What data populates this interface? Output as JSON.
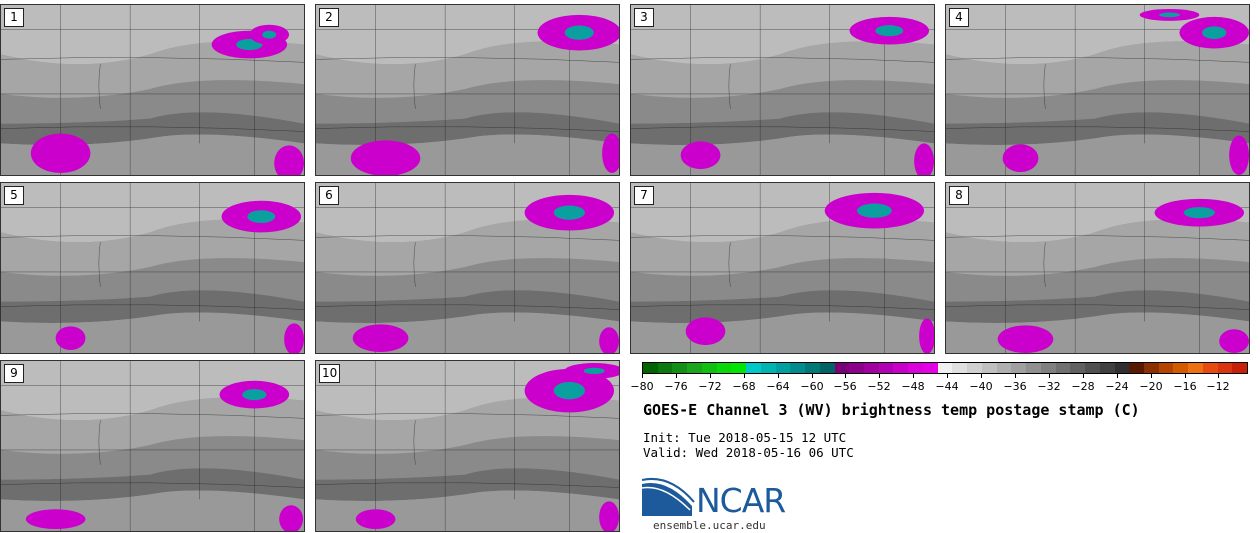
{
  "chart_data": {
    "type": "heatmap",
    "title": "GOES-E Channel 3 (WV) brightness temp postage stamp (C)",
    "init": "Init: Tue 2018-05-15 12 UTC",
    "valid": "Valid: Wed 2018-05-16 06 UTC",
    "panels": [
      "1",
      "2",
      "3",
      "4",
      "5",
      "6",
      "7",
      "8",
      "9",
      "10"
    ],
    "colorbar": {
      "range": [
        -80,
        -10
      ],
      "ticks": [
        "−80",
        "−76",
        "−72",
        "−68",
        "−64",
        "−60",
        "−56",
        "−52",
        "−48",
        "−44",
        "−40",
        "−36",
        "−32",
        "−28",
        "−24",
        "−20",
        "−16",
        "−12"
      ],
      "colors": [
        "#006400",
        "#0b7a0b",
        "#138f13",
        "#1aa51a",
        "#10c010",
        "#08d808",
        "#00e600",
        "#00c8c8",
        "#00b4b4",
        "#00a0a0",
        "#008c8c",
        "#007878",
        "#006464",
        "#7a007a",
        "#8c008c",
        "#a000a0",
        "#b400b4",
        "#c800c8",
        "#dc00dc",
        "#e600e6",
        "#f0f0f0",
        "#e0e0e0",
        "#d0d0d0",
        "#c0c0c0",
        "#b0b0b0",
        "#a0a0a0",
        "#909090",
        "#808080",
        "#707070",
        "#606060",
        "#505050",
        "#404040",
        "#303030",
        "#5a1a00",
        "#8b3000",
        "#b44500",
        "#d25a00",
        "#ef7010",
        "#e84a10",
        "#d83510",
        "#c82008"
      ]
    }
  },
  "branding": {
    "logo_text": "NCAR",
    "site": "ensemble.ucar.edu"
  },
  "colors": {
    "panel_background": "#9a9a9a",
    "cold_cloud": "#cc00cc",
    "coldest_core": "#0aa0a0",
    "map_lines": "#222222"
  }
}
